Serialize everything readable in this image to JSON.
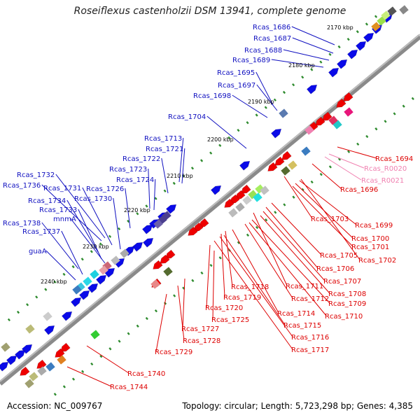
{
  "title": "Roseiflexus castenholzii DSM 13941, complete genome",
  "footer": {
    "accession": "Accession: NC_009767",
    "summary": "Topology: circular; Length: 5,723,298 bp; Genes: 4,385"
  },
  "colors": {
    "backbone": "#8a8a8a",
    "ticks": "#2e8b2e",
    "forward_label": "#1010c0",
    "reverse_label": "#dd0000",
    "rna_label": "#f080b0"
  },
  "scale_labels": [
    "2170 kbp",
    "2180 kbp",
    "2190 kbp",
    "2200 kbp",
    "2210 kbp",
    "2220 kbp",
    "2230 kbp",
    "2240 kbp"
  ],
  "forward_labels": [
    "Rcas_1686",
    "Rcas_1687",
    "Rcas_1688",
    "Rcas_1689",
    "Rcas_1695",
    "Rcas_1697",
    "Rcas_1698",
    "Rcas_1704",
    "Rcas_1713",
    "Rcas_1721",
    "Rcas_1722",
    "Rcas_1723",
    "Rcas_1724",
    "Rcas_1726",
    "Rcas_1732",
    "Rcas_1736",
    "Rcas_1731",
    "Rcas_1730",
    "Rcas_1734",
    "Rcas_1733",
    "mnmA",
    "Rcas_1738",
    "Rcas_1737",
    "guaA"
  ],
  "reverse_labels": [
    "Rcas_1694",
    "Rcas_1696",
    "Rcas_1703",
    "Rcas_1699",
    "Rcas_1700",
    "Rcas_1701",
    "Rcas_1705",
    "Rcas_1702",
    "Rcas_1706",
    "Rcas_1707",
    "Rcas_1711",
    "Rcas_1708",
    "Rcas_1718",
    "Rcas_1712",
    "Rcas_1709",
    "Rcas_1719",
    "Rcas_1720",
    "Rcas_1714",
    "Rcas_1710",
    "Rcas_1725",
    "Rcas_1715",
    "Rcas_1727",
    "Rcas_1716",
    "Rcas_1728",
    "Rcas_1717",
    "Rcas_1729",
    "Rcas_1740",
    "Rcas_1744"
  ],
  "rna_labels": [
    "Rcas_R0020",
    "Rcas_R0021"
  ]
}
